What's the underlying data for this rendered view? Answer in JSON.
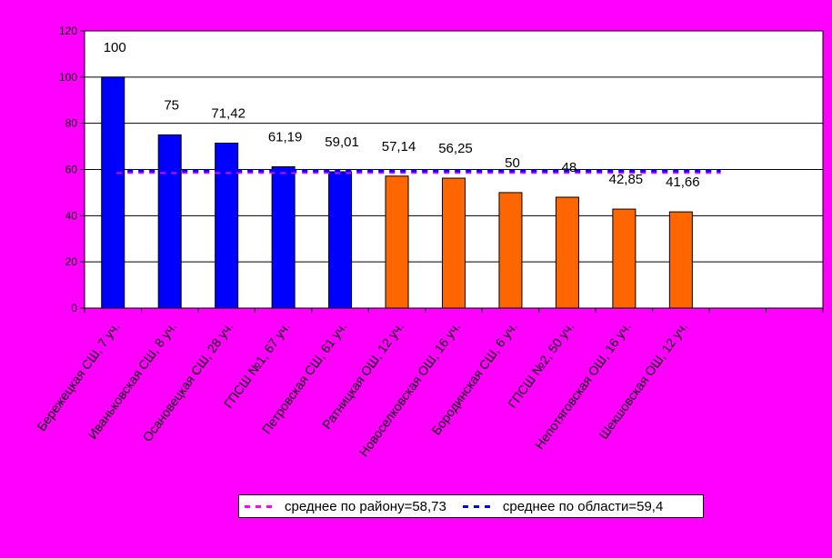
{
  "chart_data": {
    "type": "bar",
    "categories": [
      "Бережецкая СШ, 7 уч.",
      "Иваньковская СШ, 8 уч.",
      "Осановецкая СШ, 28 уч.",
      "ГПСШ №1, 67 уч.",
      "Петровская СШ, 61 уч.",
      "Ратницкая ОШ, 12 уч.",
      "Новоселковская ОШ, 16 уч.",
      "Бородинская СШ, 6 уч.",
      "ГПСШ №2, 50 уч.",
      "Непотяговская ОШ, 16 уч.",
      "Шекшовская ОШ, 12 уч."
    ],
    "values": [
      100,
      75,
      71.42,
      61.19,
      59.01,
      57.14,
      56.25,
      50,
      48,
      42.85,
      41.66
    ],
    "value_labels": [
      "100",
      "75",
      "71,42",
      "61,19",
      "59,01",
      "57,14",
      "56,25",
      "50",
      "48",
      "42,85",
      "41,66"
    ],
    "bar_colors": [
      "#0000FF",
      "#0000FF",
      "#0000FF",
      "#0000FF",
      "#0000FF",
      "#FF6600",
      "#FF6600",
      "#FF6600",
      "#FF6600",
      "#FF6600",
      "#FF6600"
    ],
    "slot_count": 13,
    "ylim": [
      0,
      120
    ],
    "yticks": [
      0,
      20,
      40,
      60,
      80,
      100,
      120
    ],
    "grid": true,
    "reference_lines": [
      {
        "name": "среднее по району=58,73",
        "value": 58.73,
        "color": "#FF00FF",
        "style": "dashed"
      },
      {
        "name": "среднее по области=59,4",
        "value": 59.4,
        "color": "#0000FF",
        "style": "dashed"
      }
    ],
    "legend_position": "bottom",
    "background_color": "#FF00FF",
    "plot_background": "#FFFFFF"
  }
}
